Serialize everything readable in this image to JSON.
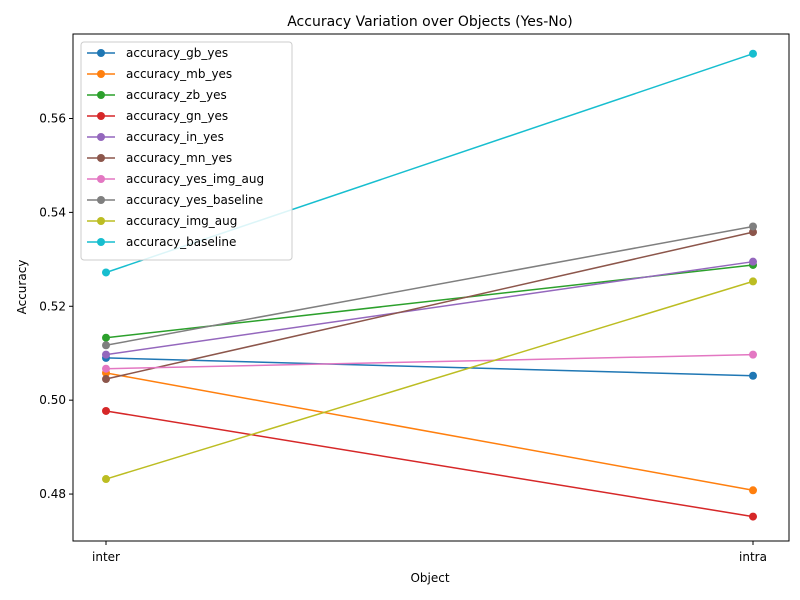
{
  "chart_data": {
    "type": "line",
    "title": "Accuracy Variation over Objects (Yes-No)",
    "xlabel": "Object",
    "ylabel": "Accuracy",
    "categories": [
      "inter",
      "intra"
    ],
    "ylim": [
      0.47,
      0.578
    ],
    "yticks": [
      0.48,
      0.5,
      0.52,
      0.54,
      0.56
    ],
    "ytick_labels": [
      "0.48",
      "0.50",
      "0.52",
      "0.54",
      "0.56"
    ],
    "grid": false,
    "legend_position": "top-left",
    "series": [
      {
        "name": "accuracy_gb_yes",
        "color": "#1f77b4",
        "values": [
          0.509,
          0.5052
        ]
      },
      {
        "name": "accuracy_mb_yes",
        "color": "#ff7f0e",
        "values": [
          0.5058,
          0.4808
        ]
      },
      {
        "name": "accuracy_zb_yes",
        "color": "#2ca02c",
        "values": [
          0.5133,
          0.5288
        ]
      },
      {
        "name": "accuracy_gn_yes",
        "color": "#d62728",
        "values": [
          0.4977,
          0.4752
        ]
      },
      {
        "name": "accuracy_in_yes",
        "color": "#9467bd",
        "values": [
          0.5097,
          0.5295
        ]
      },
      {
        "name": "accuracy_mn_yes",
        "color": "#8c564b",
        "values": [
          0.5045,
          0.5358
        ]
      },
      {
        "name": "accuracy_yes_img_aug",
        "color": "#e377c2",
        "values": [
          0.5067,
          0.5097
        ]
      },
      {
        "name": "accuracy_yes_baseline",
        "color": "#7f7f7f",
        "values": [
          0.5117,
          0.537
        ]
      },
      {
        "name": "accuracy_img_aug",
        "color": "#bcbd22",
        "values": [
          0.4832,
          0.5253
        ]
      },
      {
        "name": "accuracy_baseline",
        "color": "#17becf",
        "values": [
          0.5272,
          0.5738
        ]
      }
    ]
  }
}
